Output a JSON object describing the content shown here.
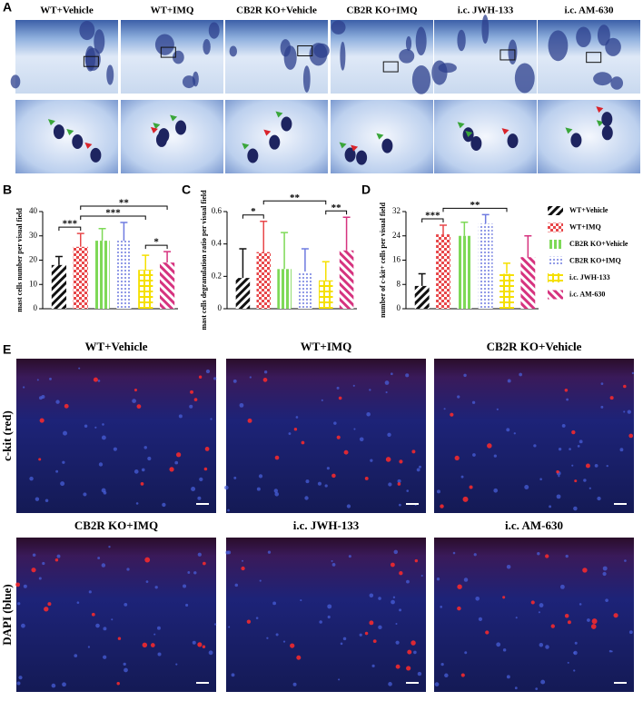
{
  "panel_labels": [
    "A",
    "B",
    "C",
    "D",
    "E"
  ],
  "panel_a": {
    "columns": [
      "WT+Vehicle",
      "WT+IMQ",
      "CB2R KO+Vehicle",
      "CB2R KO+IMQ",
      "i.c. JWH-133",
      "i.c. AM-630"
    ]
  },
  "legend": {
    "items": [
      {
        "name": "WT+Vehicle",
        "color": "#111111"
      },
      {
        "name": "WT+IMQ",
        "color": "#e8474a"
      },
      {
        "name": "CB2R KO+Vehicle",
        "color": "#7ed957"
      },
      {
        "name": "CB2R KO+IMQ",
        "color": "#6f7be0"
      },
      {
        "name": "i.c. JWH-133",
        "color": "#f5e000"
      },
      {
        "name": "i.c. AM-630",
        "color": "#d6337f"
      }
    ]
  },
  "chart_data": [
    {
      "type": "bar",
      "ylabel": "mast cells number per visual field",
      "values": [
        18,
        25.5,
        28,
        28,
        16,
        19
      ],
      "errors": [
        3.5,
        5.5,
        5,
        7.5,
        6,
        4.5
      ],
      "ylim": [
        0,
        40
      ],
      "yticks": [
        0,
        10,
        20,
        30,
        40
      ],
      "significance": [
        {
          "from": 0,
          "to": 1,
          "label": "***"
        },
        {
          "from": 4,
          "to": 5,
          "label": "*"
        },
        {
          "from": 1,
          "to": 4,
          "label": "***"
        },
        {
          "from": 1,
          "to": 5,
          "label": "**"
        }
      ]
    },
    {
      "type": "bar",
      "ylabel": "mast cells degranulation ratio per visual field",
      "values": [
        0.19,
        0.35,
        0.245,
        0.23,
        0.175,
        0.36
      ],
      "errors": [
        0.18,
        0.19,
        0.225,
        0.14,
        0.115,
        0.205
      ],
      "ylim": [
        0,
        0.6
      ],
      "yticks": [
        0,
        0.2,
        0.4,
        0.6
      ],
      "significance": [
        {
          "from": 0,
          "to": 1,
          "label": "*"
        },
        {
          "from": 4,
          "to": 5,
          "label": "**"
        },
        {
          "from": 1,
          "to": 4,
          "label": "**"
        }
      ]
    },
    {
      "type": "bar",
      "ylabel": "number of c-kit+ cells per visual field",
      "values": [
        7.5,
        24.5,
        24,
        28,
        11.5,
        17
      ],
      "errors": [
        4,
        3,
        4.5,
        3,
        3.5,
        7
      ],
      "ylim": [
        0,
        32
      ],
      "yticks": [
        0,
        8,
        16,
        24,
        32
      ],
      "significance": [
        {
          "from": 0,
          "to": 1,
          "label": "***"
        },
        {
          "from": 1,
          "to": 4,
          "label": "**"
        }
      ]
    }
  ],
  "panel_e": {
    "images": [
      "WT+Vehicle",
      "WT+IMQ",
      "CB2R KO+Vehicle",
      "CB2R KO+IMQ",
      "i.c. JWH-133",
      "i.c. AM-630"
    ],
    "row_labels": [
      "c-kit (red)",
      "DAPI (blue)"
    ]
  }
}
